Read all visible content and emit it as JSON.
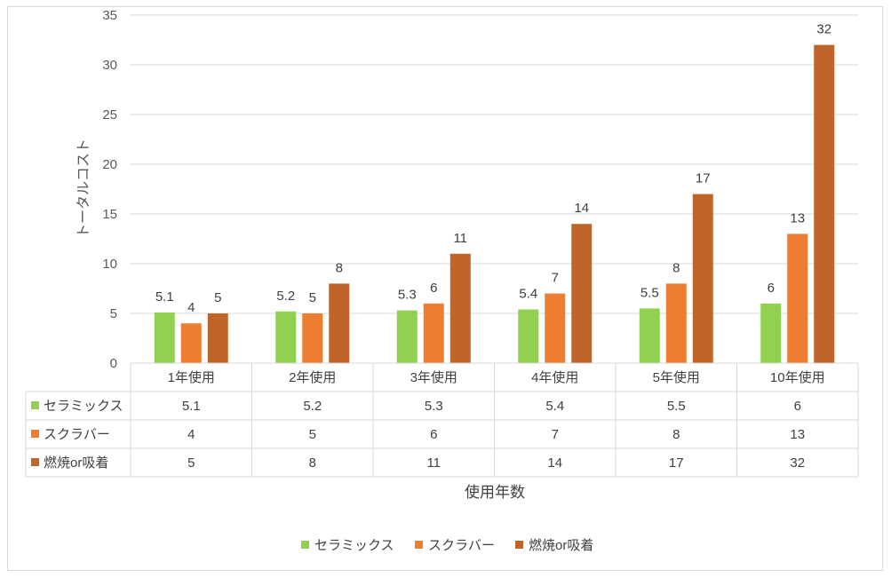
{
  "chart_data": {
    "type": "bar",
    "title": "",
    "xlabel": "使用年数",
    "ylabel": "トータルコスト",
    "ylim": [
      0,
      35
    ],
    "y_ticks": [
      0,
      5,
      10,
      15,
      20,
      25,
      30,
      35
    ],
    "categories": [
      "1年使用",
      "2年使用",
      "3年使用",
      "4年使用",
      "5年使用",
      "10年使用"
    ],
    "series": [
      {
        "name": "セラミックス",
        "color": "#92d050",
        "values": [
          5.1,
          5.2,
          5.3,
          5.4,
          5.5,
          6
        ]
      },
      {
        "name": "スクラバー",
        "color": "#ed7d31",
        "values": [
          4,
          5,
          6,
          7,
          8,
          13
        ]
      },
      {
        "name": "燃焼or吸着",
        "color": "#c0652a",
        "values": [
          5,
          8,
          11,
          14,
          17,
          32
        ]
      }
    ],
    "data_labels": true,
    "data_table": true,
    "grid": true,
    "legend_position": "bottom"
  }
}
